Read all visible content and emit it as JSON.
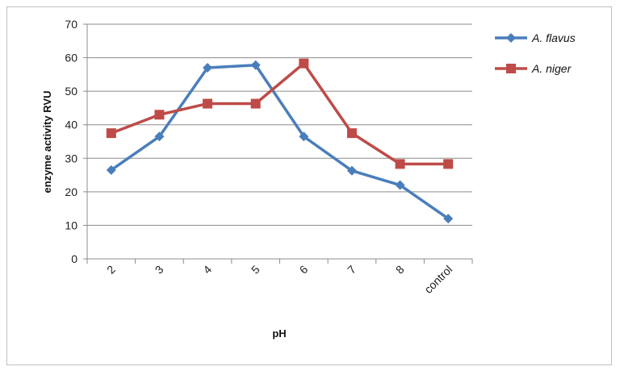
{
  "chart_data": {
    "type": "line",
    "categories": [
      "2",
      "3",
      "4",
      "5",
      "6",
      "7",
      "8",
      "control"
    ],
    "series": [
      {
        "name": "A. flavus",
        "values": [
          26.5,
          36.5,
          57,
          57.8,
          36.5,
          26.3,
          22,
          12
        ],
        "color": "#4a7ebb",
        "marker": "diamond"
      },
      {
        "name": "A. niger",
        "values": [
          37.5,
          43,
          46.3,
          46.3,
          58.3,
          37.5,
          28.3,
          28.3
        ],
        "color": "#be4b48",
        "marker": "square"
      }
    ],
    "xlabel": "pH",
    "ylabel": "enzyme activity  RVU",
    "ylim": [
      0,
      70
    ],
    "yticks": [
      "0",
      "10",
      "20",
      "30",
      "40",
      "50",
      "60",
      "70"
    ],
    "grid": true,
    "legend": "right"
  }
}
